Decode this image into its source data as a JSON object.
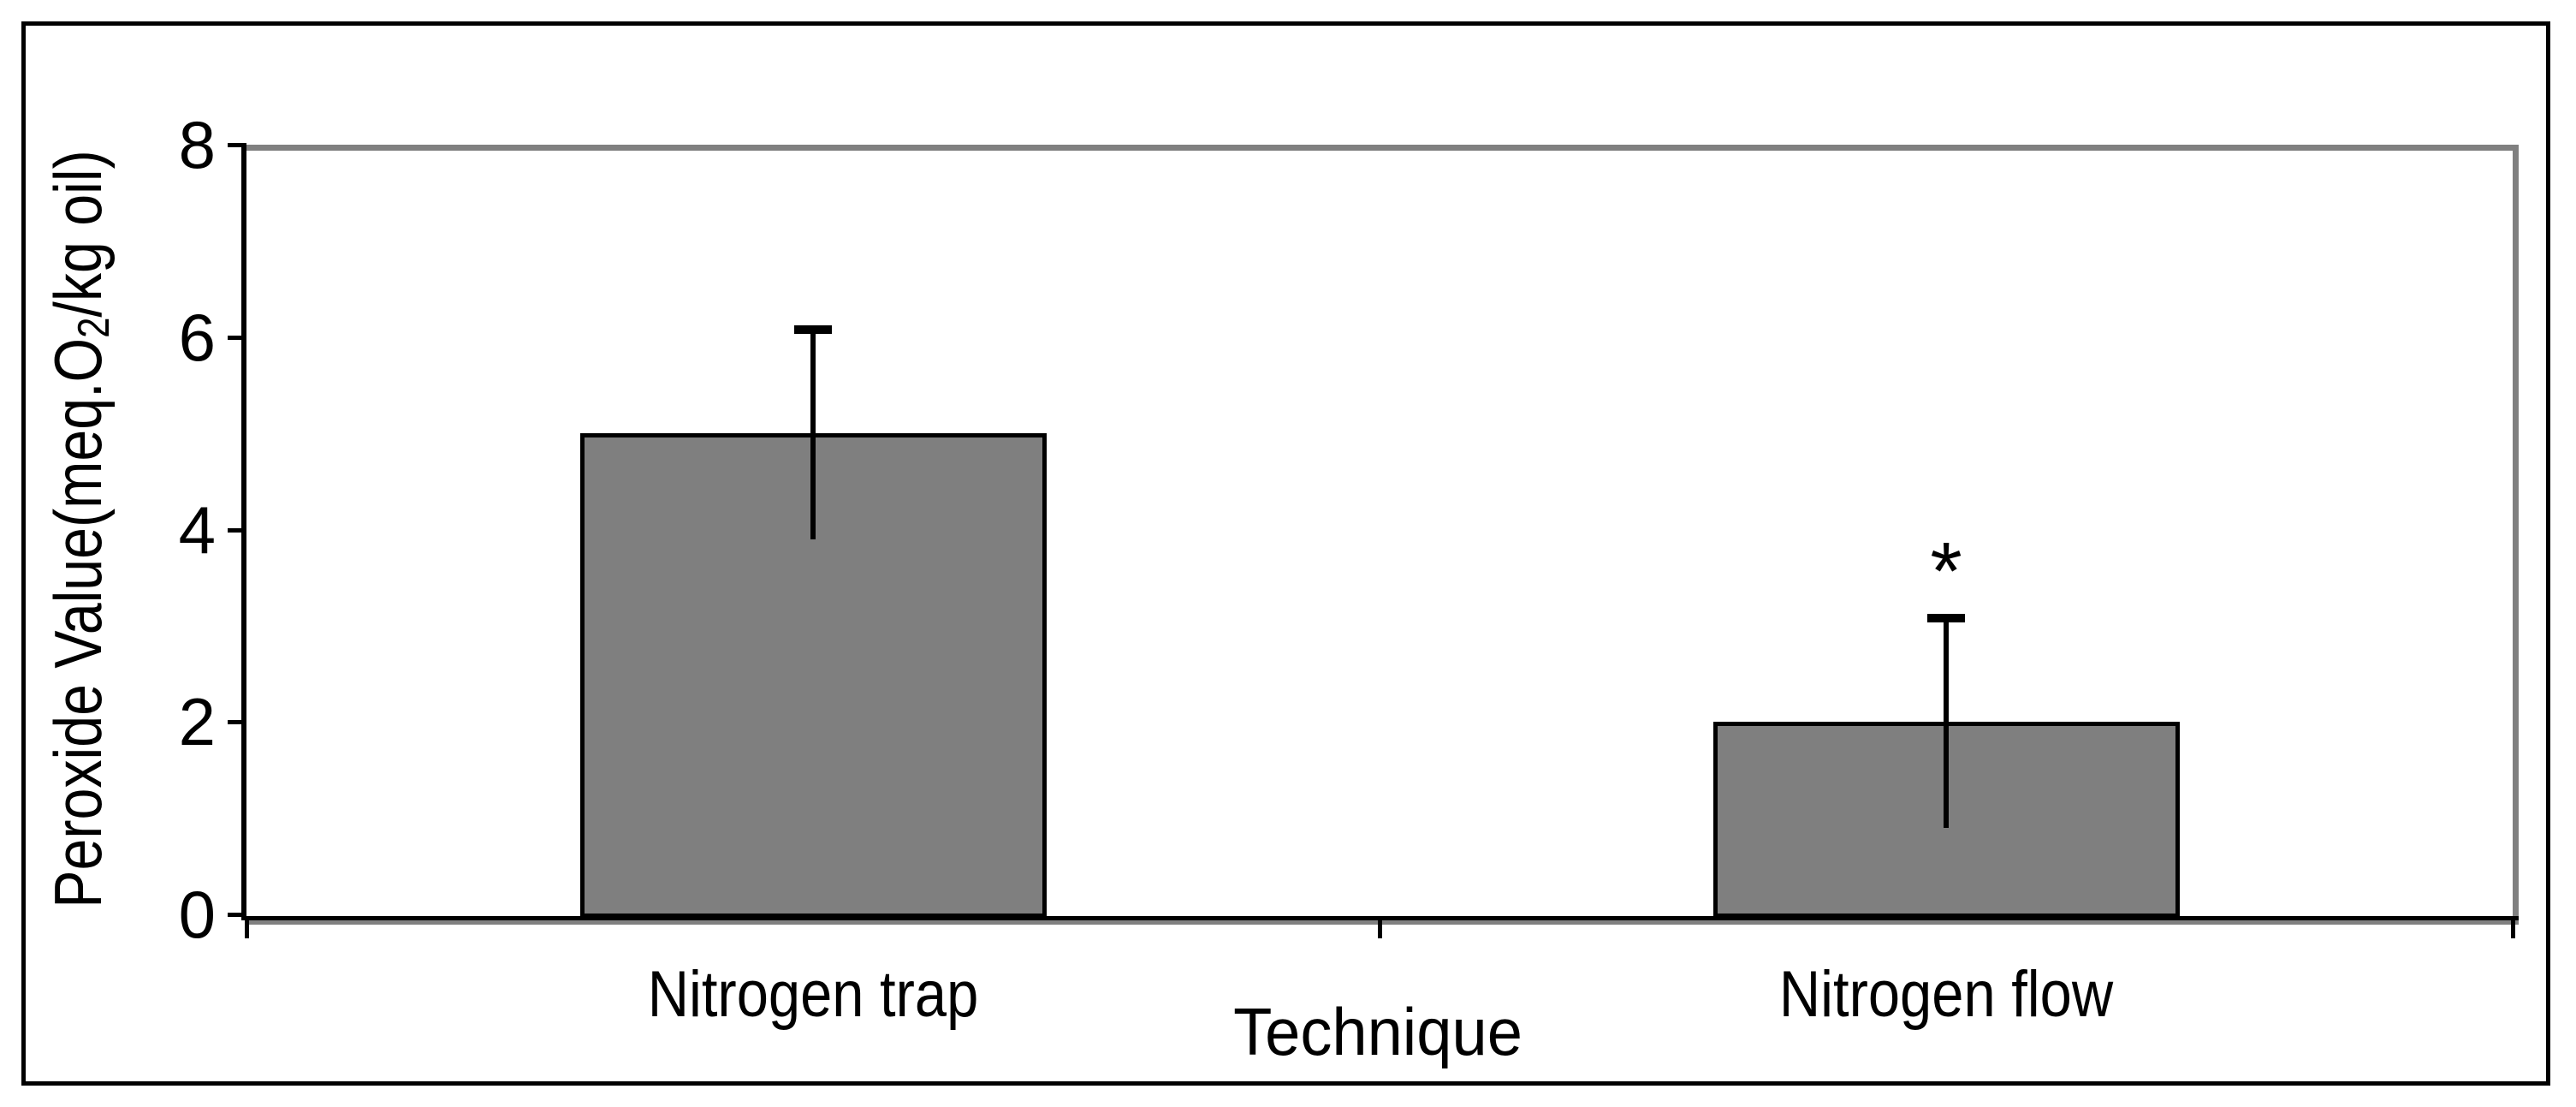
{
  "chart_data": {
    "type": "bar",
    "title": "",
    "categories": [
      "Nitrogen trap",
      "Nitrogen flow"
    ],
    "values": [
      5.0,
      2.0
    ],
    "error_bars": [
      1.1,
      1.1
    ],
    "xlabel": "Technique",
    "ylabel": "Peroxide Value(meq.O2/kg oil)",
    "ylabel_parts": {
      "pre": "Peroxide Value(meq.O",
      "sub": "2",
      "post": "/kg oil)"
    },
    "yticks": [
      "0",
      "2",
      "4",
      "6",
      "8"
    ],
    "ylim": [
      0,
      8
    ],
    "annotations": [
      {
        "text": "*",
        "category_index": 1,
        "y": 3.6
      }
    ],
    "legend": "none",
    "grid": false,
    "colors": {
      "bar_fill": "#7F7F7F",
      "bar_border": "#000000",
      "plot_border": "#808080",
      "axis_line": "#000000",
      "frame_border": "#000000",
      "background": "#FFFFFF"
    }
  }
}
